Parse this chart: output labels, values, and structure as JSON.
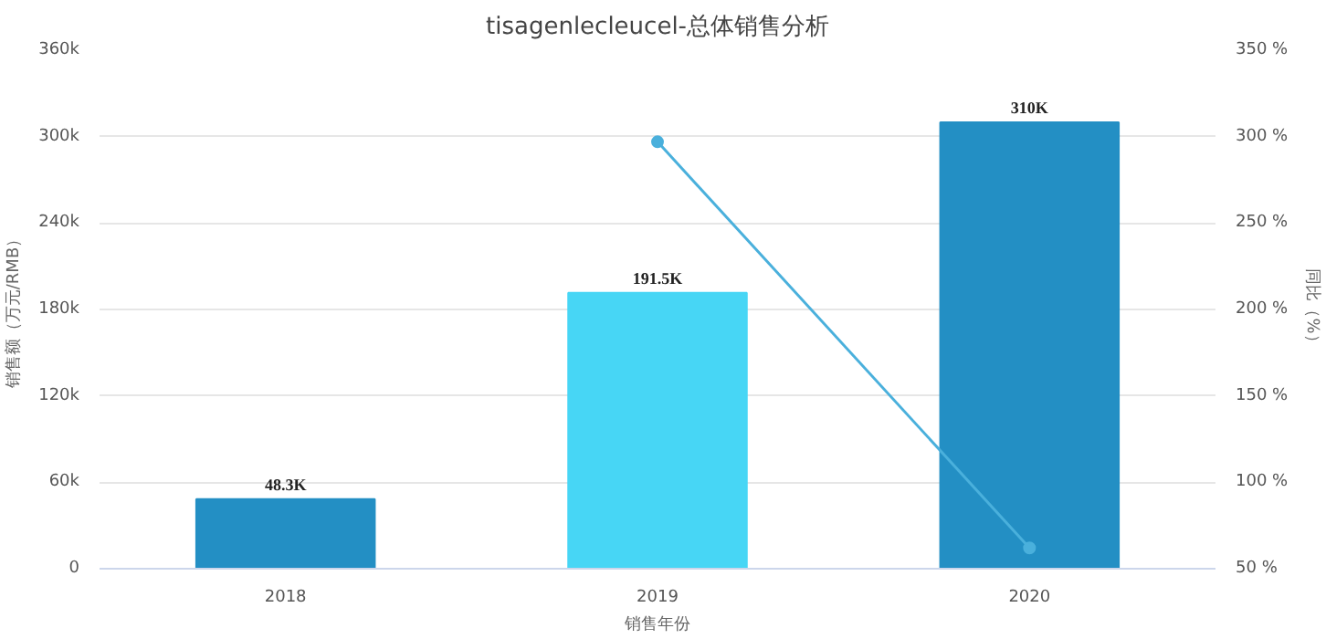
{
  "chart_data": {
    "type": "bar",
    "title": "tisagenlecleucel-总体销售分析",
    "xlabel": "销售年份",
    "ylabel": "销售额（万元/RMB）",
    "y2label": "同比（%）",
    "categories": [
      "2018",
      "2019",
      "2020"
    ],
    "series": [
      {
        "colors": [
          "#238fc4",
          "#47d6f5",
          "#238fc4"
        ],
        "values": [
          48300,
          191500,
          310000
        ],
        "value_labels": [
          "48.3K",
          "191.5K",
          "310K"
        ]
      },
      {
        "type": "line",
        "axis": "y2",
        "color": "#4ab0dc",
        "values": [
          null,
          297,
          62
        ]
      }
    ],
    "marker": "circle",
    "ylim": [
      0,
      360000
    ],
    "yticks": [
      0,
      {
        "value": 60000,
        "label": "60k"
      },
      {
        "value": 120000,
        "label": "120k"
      },
      {
        "value": 180000,
        "label": "180k"
      },
      {
        "value": 240000,
        "label": "240k"
      },
      {
        "value": 300000,
        "label": "300k"
      },
      {
        "value": 360000,
        "label": "360k"
      }
    ],
    "y2lim": [
      50,
      350
    ],
    "y2ticks": [
      {
        "value": 50,
        "label": "50 %"
      },
      {
        "value": 100,
        "label": "100 %"
      },
      {
        "value": 150,
        "label": "150 %"
      },
      {
        "value": 200,
        "label": "200 %"
      },
      {
        "value": 250,
        "label": "250 %"
      },
      {
        "value": 300,
        "label": "300 %"
      },
      {
        "value": 350,
        "label": "350 %"
      }
    ],
    "grid": "y"
  }
}
